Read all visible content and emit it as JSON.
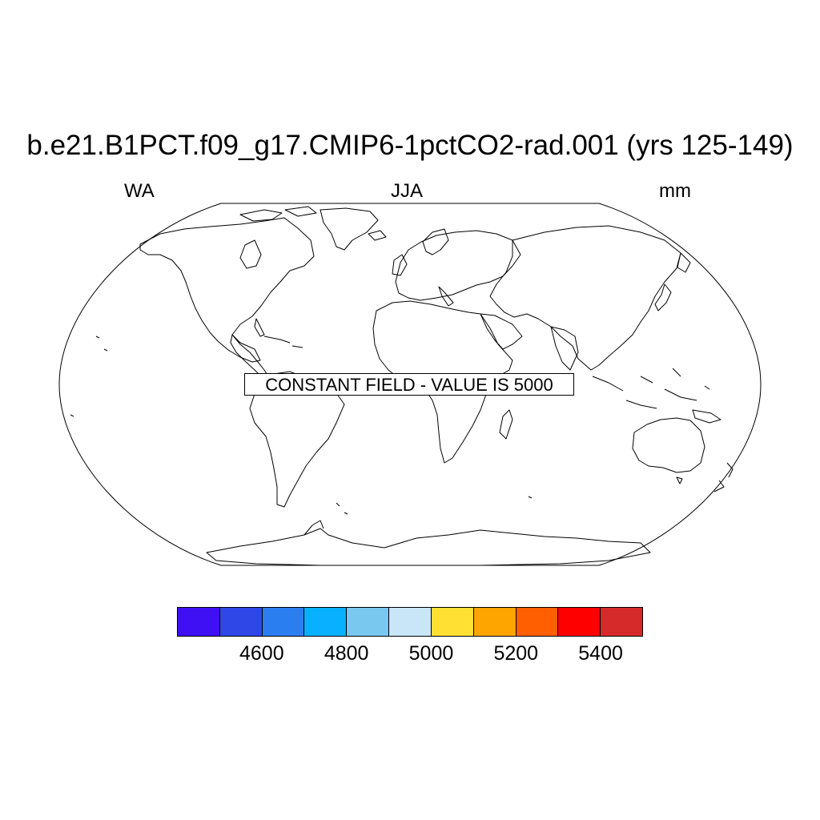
{
  "title": "b.e21.B1PCT.f09_g17.CMIP6-1pctCO2-rad.001 (yrs 125-149)",
  "subtitle_left": "WA",
  "subtitle_center": "JJA",
  "subtitle_right": "mm",
  "notice": "CONSTANT FIELD - VALUE IS 5000",
  "projection": "Robinson",
  "colorbar": {
    "colors": [
      "#4010f5",
      "#2f47e6",
      "#2b7ef0",
      "#08b0ff",
      "#78c8f0",
      "#c8e6f8",
      "#ffe033",
      "#ffa500",
      "#ff5f00",
      "#ff0000",
      "#d62a2a"
    ],
    "labels": [
      "4600",
      "4800",
      "5000",
      "5200",
      "5400"
    ]
  }
}
